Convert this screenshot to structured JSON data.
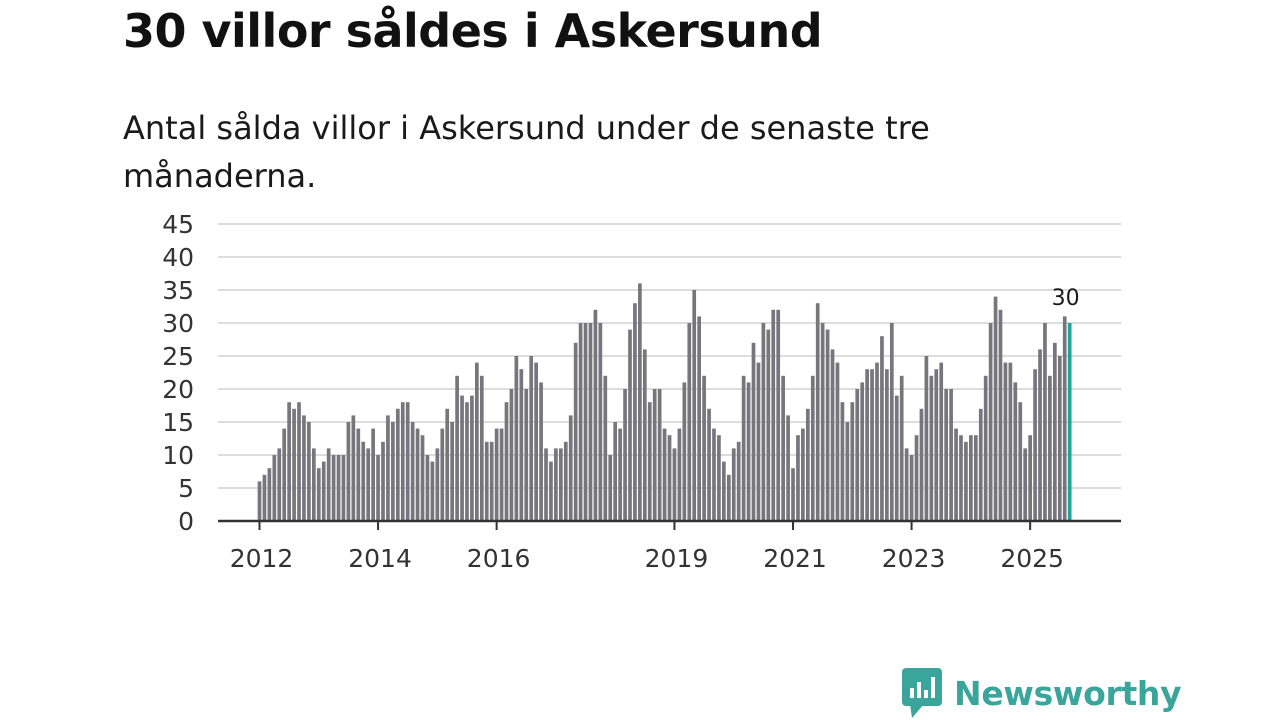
{
  "header": {
    "title": "30 villor såldes i Askersund",
    "subtitle": "Antal sålda villor i Askersund under de senaste tre månaderna."
  },
  "brand": {
    "name": "Newsworthy",
    "color": "#3aa59a"
  },
  "colors": {
    "bar": "#77767d",
    "highlight": "#1fa39b",
    "grid": "#dddddd",
    "axis": "#333333"
  },
  "chart_data": {
    "type": "bar",
    "title": "30 villor såldes i Askersund",
    "subtitle": "Antal sålda villor i Askersund under de senaste tre månaderna.",
    "xlabel": "",
    "ylabel": "",
    "ylim": [
      0,
      45
    ],
    "yticks": [
      0,
      5,
      10,
      15,
      20,
      25,
      30,
      35,
      40,
      45
    ],
    "xtick_labels": [
      {
        "label": "2012",
        "index": 0
      },
      {
        "label": "2014",
        "index": 24
      },
      {
        "label": "2016",
        "index": 48
      },
      {
        "label": "2019",
        "index": 84
      },
      {
        "label": "2021",
        "index": 108
      },
      {
        "label": "2023",
        "index": 132
      },
      {
        "label": "2025",
        "index": 156
      }
    ],
    "grid": true,
    "highlight_last": true,
    "last_value_label": "30",
    "period": "monthly, Jan 2012 – Sep 2025",
    "values": [
      6,
      7,
      8,
      10,
      11,
      14,
      18,
      17,
      18,
      16,
      15,
      11,
      8,
      9,
      11,
      10,
      10,
      10,
      15,
      16,
      14,
      12,
      11,
      14,
      10,
      12,
      16,
      15,
      17,
      18,
      18,
      15,
      14,
      13,
      10,
      9,
      11,
      14,
      17,
      15,
      22,
      19,
      18,
      19,
      24,
      22,
      12,
      12,
      14,
      14,
      18,
      20,
      25,
      23,
      20,
      25,
      24,
      21,
      11,
      9,
      11,
      11,
      12,
      16,
      27,
      30,
      30,
      30,
      32,
      30,
      22,
      10,
      15,
      14,
      20,
      29,
      33,
      36,
      26,
      18,
      20,
      20,
      14,
      13,
      11,
      14,
      21,
      30,
      35,
      31,
      22,
      17,
      14,
      13,
      9,
      7,
      11,
      12,
      22,
      21,
      27,
      24,
      30,
      29,
      32,
      32,
      22,
      16,
      8,
      13,
      14,
      17,
      22,
      33,
      30,
      29,
      26,
      24,
      18,
      15,
      18,
      20,
      21,
      23,
      23,
      24,
      28,
      23,
      30,
      19,
      22,
      11,
      10,
      13,
      17,
      25,
      22,
      23,
      24,
      20,
      20,
      14,
      13,
      12,
      13,
      13,
      17,
      22,
      30,
      34,
      32,
      24,
      24,
      21,
      18,
      11,
      13,
      23,
      26,
      30,
      22,
      27,
      25,
      31,
      30
    ]
  }
}
